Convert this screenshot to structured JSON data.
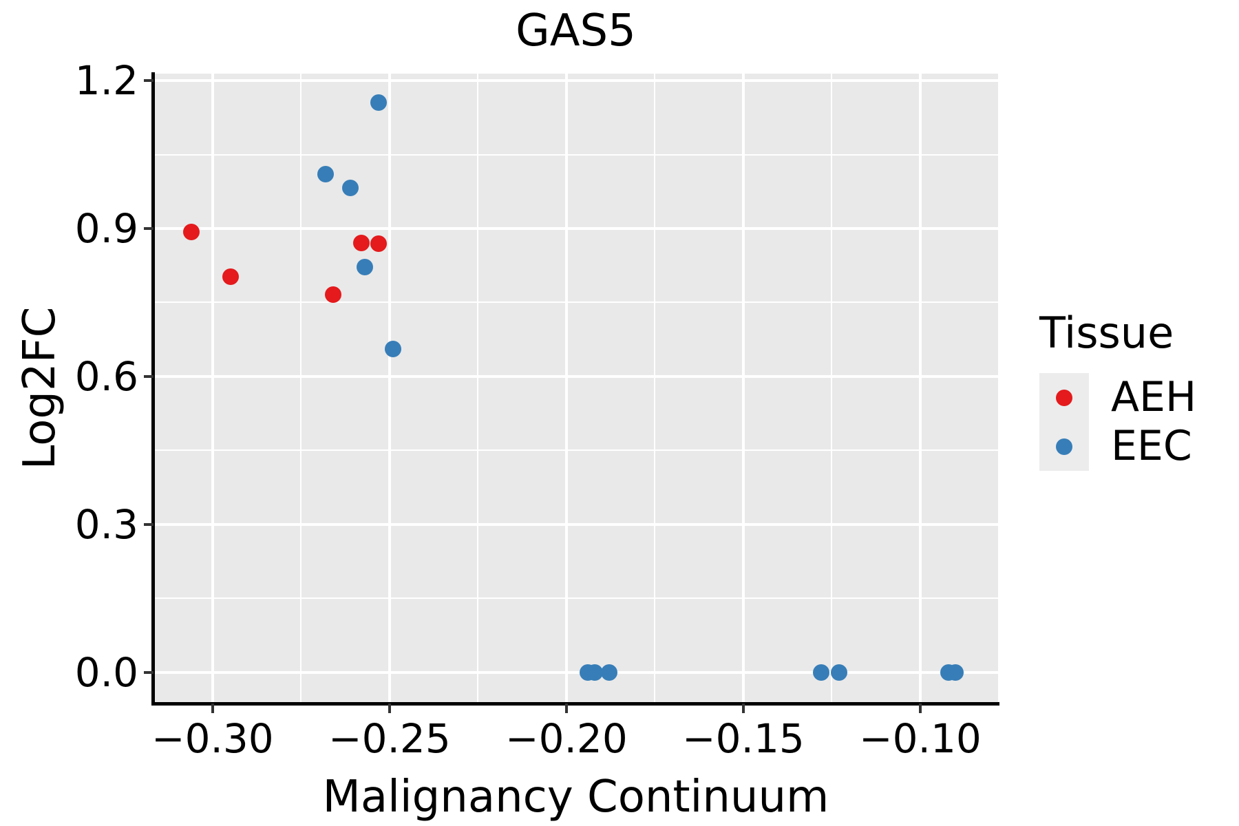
{
  "figure": {
    "title": "GAS5"
  },
  "chart_data": {
    "type": "scatter",
    "title": "GAS5",
    "xlabel": "Malignancy Continuum",
    "ylabel": "Log2FC",
    "xlim": [
      -0.3167,
      -0.078
    ],
    "ylim": [
      -0.063,
      1.214
    ],
    "grid": true,
    "panel_background": "#E9E9E9",
    "gridline_color": "#FFFFFF",
    "x_ticks": {
      "values": [
        -0.3,
        -0.25,
        -0.2,
        -0.15,
        -0.1
      ],
      "labels": [
        "−0.30",
        "−0.25",
        "−0.20",
        "−0.15",
        "−0.10"
      ]
    },
    "y_ticks": {
      "values": [
        0.0,
        0.3,
        0.6,
        0.9,
        1.2
      ],
      "labels": [
        "0.0",
        "0.3",
        "0.6",
        "0.9",
        "1.2"
      ]
    },
    "x_minor_ticks": [
      -0.275,
      -0.225,
      -0.175,
      -0.125
    ],
    "y_minor_ticks": [
      0.15,
      0.45,
      0.75,
      1.05
    ],
    "series": [
      {
        "name": "EEC",
        "color": "#377EB8",
        "points": [
          [
            -0.268,
            1.01
          ],
          [
            -0.261,
            0.982
          ],
          [
            -0.253,
            1.155
          ],
          [
            -0.257,
            0.822
          ],
          [
            -0.249,
            0.656
          ],
          [
            -0.194,
            0.0
          ],
          [
            -0.192,
            0.0
          ],
          [
            -0.188,
            0.0
          ],
          [
            -0.128,
            0.0
          ],
          [
            -0.123,
            0.0
          ],
          [
            -0.092,
            0.0
          ],
          [
            -0.09,
            0.0
          ]
        ]
      },
      {
        "name": "AEH",
        "color": "#E41A1C",
        "points": [
          [
            -0.306,
            0.893
          ],
          [
            -0.295,
            0.802
          ],
          [
            -0.266,
            0.766
          ],
          [
            -0.258,
            0.871
          ],
          [
            -0.253,
            0.869
          ]
        ]
      }
    ],
    "legend_position": "right"
  },
  "legend": {
    "title": "Tissue",
    "items": [
      {
        "label": "AEH",
        "color": "#E41A1C"
      },
      {
        "label": "EEC",
        "color": "#377EB8"
      }
    ]
  }
}
